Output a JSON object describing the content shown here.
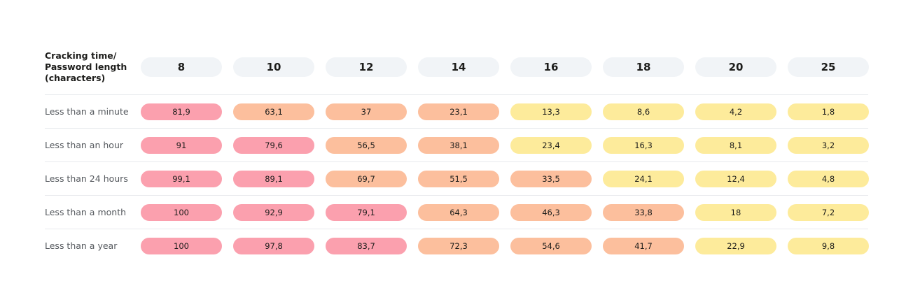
{
  "header": {
    "title": "Cracking time/ Password length (characters)"
  },
  "table": {
    "columns": [
      "8",
      "10",
      "12",
      "14",
      "16",
      "18",
      "20",
      "25"
    ],
    "colors": {
      "pink": "#fba0ae",
      "orange": "#fcbf9d",
      "yellow": "#fdeb9b"
    },
    "rows": [
      {
        "label": "Less than a minute",
        "cells": [
          {
            "text": "81,9",
            "color": "pink"
          },
          {
            "text": "63,1",
            "color": "orange"
          },
          {
            "text": "37",
            "color": "orange"
          },
          {
            "text": "23,1",
            "color": "orange"
          },
          {
            "text": "13,3",
            "color": "yellow"
          },
          {
            "text": "8,6",
            "color": "yellow"
          },
          {
            "text": "4,2",
            "color": "yellow"
          },
          {
            "text": "1,8",
            "color": "yellow"
          }
        ]
      },
      {
        "label": "Less than an hour",
        "cells": [
          {
            "text": "91",
            "color": "pink"
          },
          {
            "text": "79,6",
            "color": "pink"
          },
          {
            "text": "56,5",
            "color": "orange"
          },
          {
            "text": "38,1",
            "color": "orange"
          },
          {
            "text": "23,4",
            "color": "yellow"
          },
          {
            "text": "16,3",
            "color": "yellow"
          },
          {
            "text": "8,1",
            "color": "yellow"
          },
          {
            "text": "3,2",
            "color": "yellow"
          }
        ]
      },
      {
        "label": "Less than 24 hours",
        "cells": [
          {
            "text": "99,1",
            "color": "pink"
          },
          {
            "text": "89,1",
            "color": "pink"
          },
          {
            "text": "69,7",
            "color": "orange"
          },
          {
            "text": "51,5",
            "color": "orange"
          },
          {
            "text": "33,5",
            "color": "orange"
          },
          {
            "text": "24,1",
            "color": "yellow"
          },
          {
            "text": "12,4",
            "color": "yellow"
          },
          {
            "text": "4,8",
            "color": "yellow"
          }
        ]
      },
      {
        "label": "Less than a month",
        "cells": [
          {
            "text": "100",
            "color": "pink"
          },
          {
            "text": "92,9",
            "color": "pink"
          },
          {
            "text": "79,1",
            "color": "pink"
          },
          {
            "text": "64,3",
            "color": "orange"
          },
          {
            "text": "46,3",
            "color": "orange"
          },
          {
            "text": "33,8",
            "color": "orange"
          },
          {
            "text": "18",
            "color": "yellow"
          },
          {
            "text": "7,2",
            "color": "yellow"
          }
        ]
      },
      {
        "label": "Less than a year",
        "cells": [
          {
            "text": "100",
            "color": "pink"
          },
          {
            "text": "97,8",
            "color": "pink"
          },
          {
            "text": "83,7",
            "color": "pink"
          },
          {
            "text": "72,3",
            "color": "orange"
          },
          {
            "text": "54,6",
            "color": "orange"
          },
          {
            "text": "41,7",
            "color": "orange"
          },
          {
            "text": "22,9",
            "color": "yellow"
          },
          {
            "text": "9,8",
            "color": "yellow"
          }
        ]
      }
    ]
  }
}
